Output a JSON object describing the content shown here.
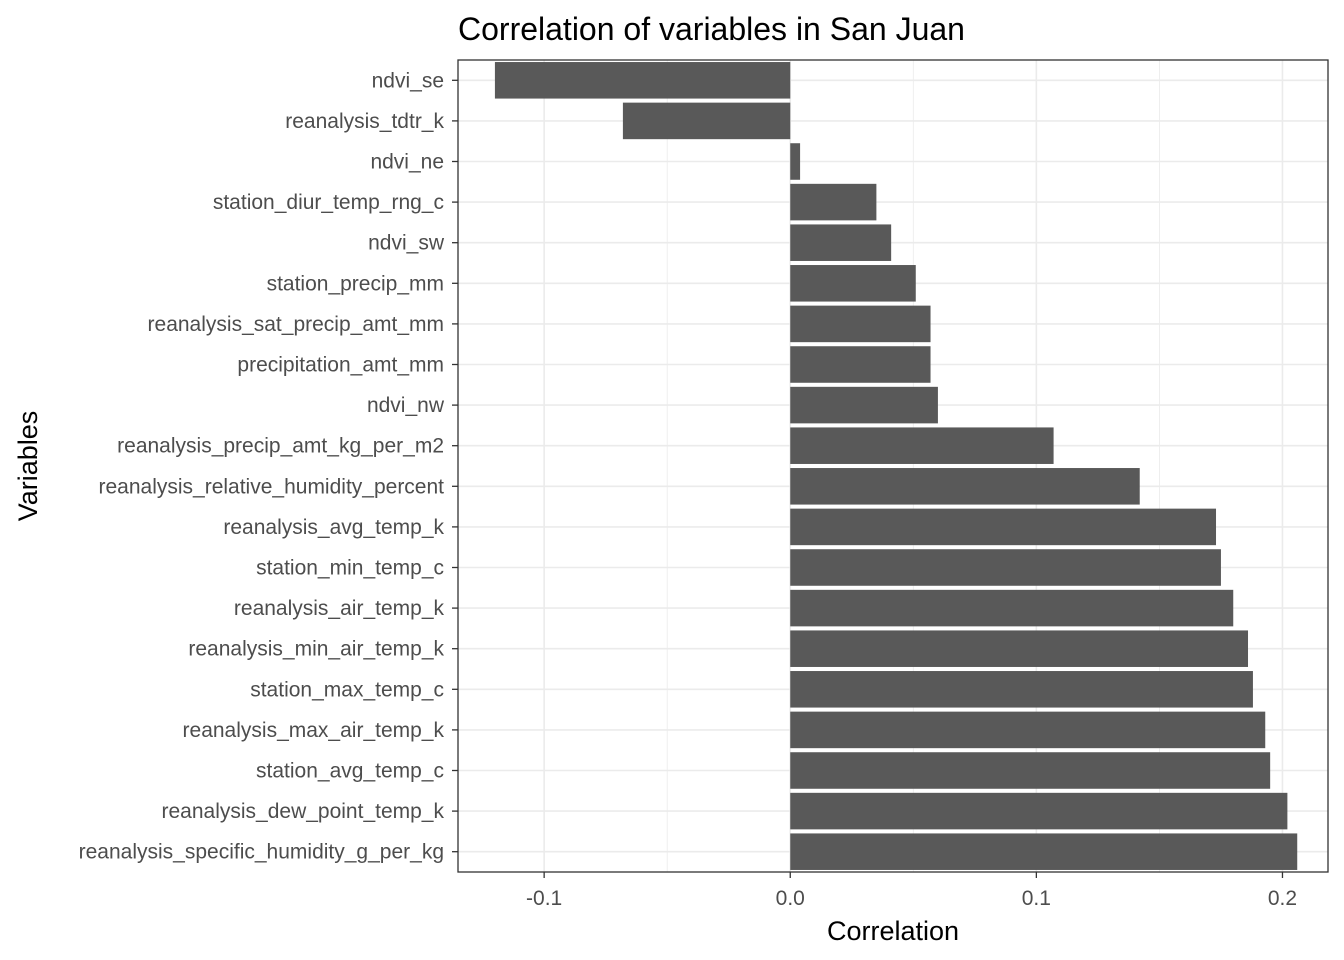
{
  "chart_data": {
    "type": "bar",
    "orientation": "horizontal",
    "title": "Correlation of variables in San Juan",
    "xlabel": "Correlation",
    "ylabel": "Variables",
    "xlim": [
      -0.135,
      0.2185
    ],
    "xticks": [
      -0.1,
      0.0,
      0.1,
      0.2
    ],
    "xtick_labels": [
      "-0.1",
      "0.0",
      "0.1",
      "0.2"
    ],
    "grid": true,
    "bar_color": "#595959",
    "categories": [
      "ndvi_se",
      "reanalysis_tdtr_k",
      "ndvi_ne",
      "station_diur_temp_rng_c",
      "ndvi_sw",
      "station_precip_mm",
      "reanalysis_sat_precip_amt_mm",
      "precipitation_amt_mm",
      "ndvi_nw",
      "reanalysis_precip_amt_kg_per_m2",
      "reanalysis_relative_humidity_percent",
      "reanalysis_avg_temp_k",
      "station_min_temp_c",
      "reanalysis_air_temp_k",
      "reanalysis_min_air_temp_k",
      "station_max_temp_c",
      "reanalysis_max_air_temp_k",
      "station_avg_temp_c",
      "reanalysis_dew_point_temp_k",
      "reanalysis_specific_humidity_g_per_kg"
    ],
    "values": [
      -0.12,
      -0.068,
      0.004,
      0.035,
      0.041,
      0.051,
      0.057,
      0.057,
      0.06,
      0.107,
      0.142,
      0.173,
      0.175,
      0.18,
      0.186,
      0.188,
      0.193,
      0.195,
      0.202,
      0.206
    ]
  }
}
